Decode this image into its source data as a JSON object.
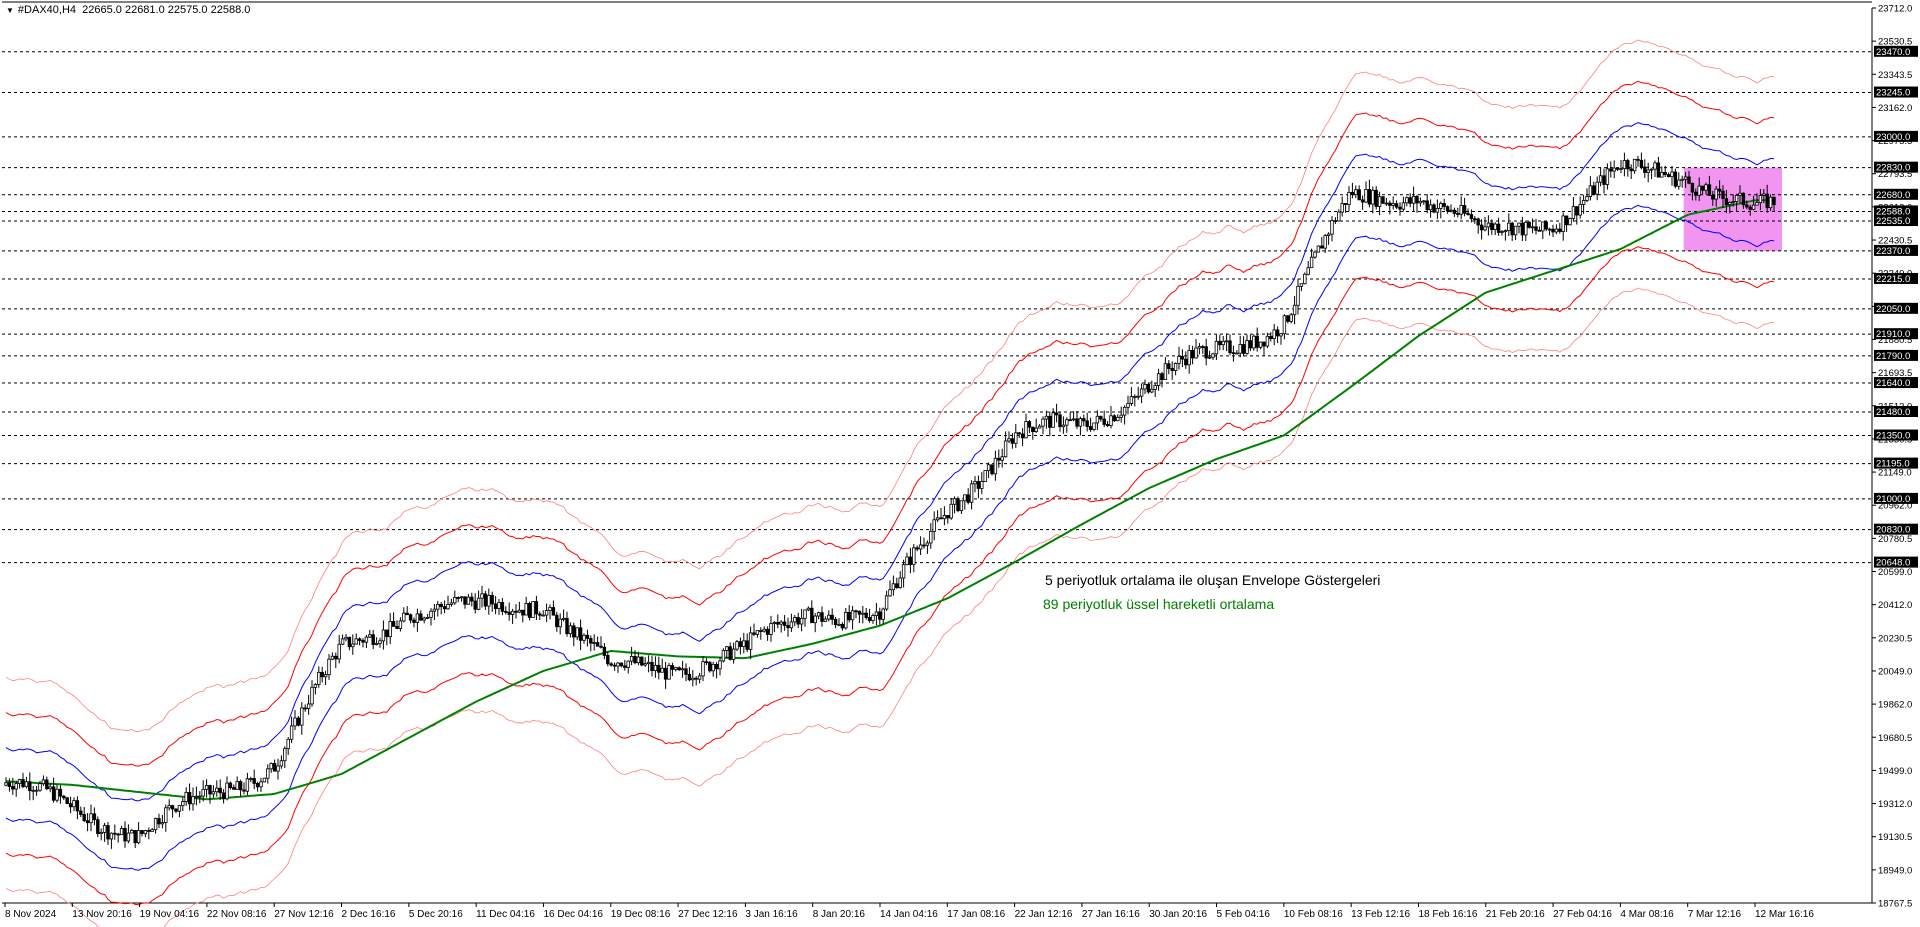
{
  "header": {
    "symbol": "#DAX40,H4",
    "ohlc": "22665.0 22681.0 22575.0 22588.0"
  },
  "annotations": {
    "envelope": "5 periyotluk ortalama ile oluşan Envelope Göstergeleri",
    "ema": "89 periyotluk üssel hareketli ortalama"
  },
  "colors": {
    "candles": "#000000",
    "envelope_inner": "#0000ff",
    "envelope_middle": "#ff0000",
    "envelope_outer": "#ff8080",
    "ema": "#008000",
    "zone": "#ee82ee",
    "levels": "#000000"
  },
  "chart_data": {
    "type": "candlestick",
    "title": "#DAX40,H4",
    "ylim": [
      18767.5,
      23712.0
    ],
    "x_tick_labels": [
      "8 Nov 2024",
      "13 Nov 20:16",
      "19 Nov 04:16",
      "22 Nov 08:16",
      "27 Nov 12:16",
      "2 Dec 16:16",
      "5 Dec 20:16",
      "11 Dec 04:16",
      "16 Dec 04:16",
      "19 Dec 08:16",
      "27 Dec 12:16",
      "3 Jan 16:16",
      "8 Jan 20:16",
      "14 Jan 04:16",
      "17 Jan 08:16",
      "22 Jan 12:16",
      "27 Jan 16:16",
      "30 Jan 20:16",
      "5 Feb 04:16",
      "10 Feb 08:16",
      "13 Feb 12:16",
      "18 Feb 16:16",
      "21 Feb 20:16",
      "27 Feb 04:16",
      "4 Mar 08:16",
      "7 Mar 12:16",
      "12 Mar 16:16"
    ],
    "y_tick_labels": [
      "23712.0",
      "23530.5",
      "23343.5",
      "23162.0",
      "22975.5",
      "22793.5",
      "22612.0",
      "22430.5",
      "22249.0",
      "22062.0",
      "21880.5",
      "21693.5",
      "21512.0",
      "21330.5",
      "21149.0",
      "20962.0",
      "20780.5",
      "20599.0",
      "20412.0",
      "20230.5",
      "20049.0",
      "19862.0",
      "19680.5",
      "19499.0",
      "19312.0",
      "19130.5",
      "18949.0",
      "18767.5"
    ],
    "levels": [
      23470.0,
      23245.0,
      23000.0,
      22830.0,
      22680.0,
      22588.0,
      22535.0,
      22370.0,
      22215.0,
      22050.0,
      21910.0,
      21790.0,
      21640.0,
      21480.0,
      21350.0,
      21195.0,
      21000.0,
      20830.0,
      20648.0
    ],
    "current_price": 22588.0,
    "zone": {
      "start_label": "7 Mar 12:16",
      "end_label": "12 Mar 16:16",
      "high": 22830.0,
      "low": 22370.0
    },
    "price_path": [
      [
        "8 Nov 2024",
        19420
      ],
      [
        "13 Nov 20:16",
        19300
      ],
      [
        "19 Nov 04:16",
        19150
      ],
      [
        "22 Nov 08:16",
        19350
      ],
      [
        "27 Nov 12:16",
        19550
      ],
      [
        "2 Dec 16:16",
        20150
      ],
      [
        "5 Dec 20:16",
        20400
      ],
      [
        "11 Dec 04:16",
        20380
      ],
      [
        "16 Dec 04:16",
        20450
      ],
      [
        "19 Dec 08:16",
        20050
      ],
      [
        "27 Dec 12:16",
        20080
      ],
      [
        "3 Jan 16:16",
        20150
      ],
      [
        "8 Jan 20:16",
        20400
      ],
      [
        "14 Jan 04:16",
        20350
      ],
      [
        "17 Jan 08:16",
        20950
      ],
      [
        "22 Jan 12:16",
        21350
      ],
      [
        "27 Jan 16:16",
        21400
      ],
      [
        "30 Jan 20:16",
        21650
      ],
      [
        "5 Feb 04:16",
        21800
      ],
      [
        "10 Feb 08:16",
        22000
      ],
      [
        "13 Feb 12:16",
        22650
      ],
      [
        "18 Feb 16:16",
        22700
      ],
      [
        "21 Feb 20:16",
        22450
      ],
      [
        "27 Feb 04:16",
        22550
      ],
      [
        "4 Mar 08:16",
        22800
      ],
      [
        "7 Mar 12:16",
        22800
      ],
      [
        "12 Mar 16:16",
        22588
      ]
    ],
    "ema_path": [
      [
        "8 Nov 2024",
        19440
      ],
      [
        "13 Nov 20:16",
        19420
      ],
      [
        "19 Nov 04:16",
        19380
      ],
      [
        "22 Nov 08:16",
        19340
      ],
      [
        "27 Nov 12:16",
        19370
      ],
      [
        "2 Dec 16:16",
        19480
      ],
      [
        "5 Dec 20:16",
        19680
      ],
      [
        "11 Dec 04:16",
        19880
      ],
      [
        "16 Dec 04:16",
        20050
      ],
      [
        "19 Dec 08:16",
        20160
      ],
      [
        "27 Dec 12:16",
        20130
      ],
      [
        "3 Jan 16:16",
        20120
      ],
      [
        "8 Jan 20:16",
        20200
      ],
      [
        "14 Jan 04:16",
        20300
      ],
      [
        "17 Jan 08:16",
        20450
      ],
      [
        "22 Jan 12:16",
        20650
      ],
      [
        "27 Jan 16:16",
        20860
      ],
      [
        "30 Jan 20:16",
        21060
      ],
      [
        "5 Feb 04:16",
        21220
      ],
      [
        "10 Feb 08:16",
        21350
      ],
      [
        "13 Feb 12:16",
        21620
      ],
      [
        "18 Feb 16:16",
        21900
      ],
      [
        "21 Feb 20:16",
        22140
      ],
      [
        "27 Feb 04:16",
        22260
      ],
      [
        "4 Mar 08:16",
        22380
      ],
      [
        "7 Mar 12:16",
        22570
      ],
      [
        "12 Mar 16:16",
        22650
      ]
    ],
    "envelope_bands_pct": [
      1.0,
      2.0,
      3.0
    ],
    "grid": false
  }
}
